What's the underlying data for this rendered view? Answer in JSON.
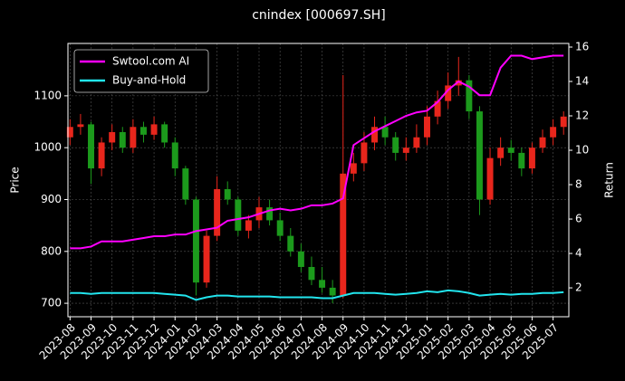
{
  "chart_data": {
    "type": "candlestick",
    "title": "cnindex [000697.SH]",
    "ylabel": "Price",
    "y2label": "Return",
    "x": [
      0,
      0.5,
      1,
      1.5,
      2,
      2.5,
      3,
      3.5,
      4,
      4.5,
      5,
      5.5,
      6,
      6.5,
      7,
      7.5,
      8,
      8.5,
      9,
      9.5,
      10,
      10.5,
      11,
      11.5,
      12,
      12.5,
      13,
      13.5,
      14,
      14.5,
      15,
      15.5,
      16,
      16.5,
      17,
      17.5,
      18,
      18.5,
      19,
      19.5,
      20,
      20.5,
      21,
      21.5,
      22,
      22.5,
      23,
      23.5
    ],
    "open": [
      1020,
      1040,
      1045,
      960,
      1010,
      1030,
      1000,
      1040,
      1025,
      1045,
      1010,
      960,
      900,
      740,
      830,
      920,
      900,
      840,
      860,
      885,
      860,
      830,
      800,
      770,
      745,
      730,
      715,
      950,
      970,
      1010,
      1040,
      1020,
      990,
      1000,
      1020,
      1060,
      1090,
      1120,
      1130,
      1070,
      900,
      980,
      1000,
      990,
      960,
      1000,
      1020,
      1040
    ],
    "close": [
      1040,
      1045,
      960,
      1010,
      1030,
      1000,
      1040,
      1025,
      1045,
      1010,
      960,
      900,
      740,
      830,
      920,
      900,
      840,
      860,
      885,
      860,
      830,
      800,
      770,
      745,
      730,
      715,
      950,
      970,
      1010,
      1040,
      1020,
      990,
      1000,
      1020,
      1060,
      1090,
      1120,
      1130,
      1070,
      900,
      980,
      1000,
      990,
      960,
      1000,
      1020,
      1040,
      1060
    ],
    "high": [
      1055,
      1065,
      1050,
      1020,
      1045,
      1040,
      1055,
      1050,
      1060,
      1050,
      1020,
      965,
      905,
      840,
      945,
      935,
      905,
      870,
      905,
      900,
      875,
      845,
      815,
      790,
      770,
      745,
      1140,
      990,
      1030,
      1060,
      1060,
      1030,
      1020,
      1045,
      1080,
      1110,
      1145,
      1175,
      1140,
      1080,
      1000,
      1020,
      1015,
      1000,
      1010,
      1035,
      1055,
      1070
    ],
    "low": [
      1005,
      1025,
      930,
      945,
      995,
      990,
      990,
      1010,
      1015,
      1000,
      945,
      890,
      715,
      730,
      820,
      890,
      830,
      825,
      845,
      850,
      820,
      790,
      760,
      735,
      720,
      700,
      710,
      935,
      955,
      995,
      1005,
      975,
      975,
      990,
      1005,
      1045,
      1075,
      1100,
      1055,
      870,
      890,
      965,
      975,
      945,
      950,
      990,
      1005,
      1025
    ],
    "up_color": "#e8261c",
    "down_color": "#1c9a1c",
    "series": [
      {
        "name": "Swtool.com AI",
        "color": "#ff00ff",
        "axis": "y2",
        "values": [
          4.3,
          4.3,
          4.4,
          4.7,
          4.7,
          4.7,
          4.8,
          4.9,
          5.0,
          5.0,
          5.1,
          5.1,
          5.3,
          5.4,
          5.5,
          5.9,
          6.0,
          6.1,
          6.3,
          6.5,
          6.6,
          6.5,
          6.6,
          6.8,
          6.8,
          6.9,
          7.2,
          10.3,
          10.7,
          11.1,
          11.4,
          11.7,
          12.0,
          12.2,
          12.3,
          12.8,
          13.5,
          14.0,
          13.7,
          13.2,
          13.2,
          14.8,
          15.5,
          15.5,
          15.3,
          15.4,
          15.5,
          15.5
        ]
      },
      {
        "name": "Buy-and-Hold",
        "color": "#22e5ee",
        "axis": "y2",
        "values": [
          1.7,
          1.7,
          1.65,
          1.7,
          1.7,
          1.7,
          1.7,
          1.7,
          1.7,
          1.65,
          1.6,
          1.55,
          1.3,
          1.45,
          1.55,
          1.55,
          1.5,
          1.5,
          1.5,
          1.5,
          1.45,
          1.45,
          1.45,
          1.45,
          1.4,
          1.4,
          1.55,
          1.7,
          1.7,
          1.7,
          1.65,
          1.6,
          1.65,
          1.7,
          1.8,
          1.75,
          1.85,
          1.8,
          1.7,
          1.55,
          1.6,
          1.65,
          1.6,
          1.65,
          1.65,
          1.7,
          1.7,
          1.75
        ]
      }
    ],
    "xlim": [
      -0.1,
      23.75
    ],
    "xticks": [
      {
        "value": 0,
        "label": "2023-08"
      },
      {
        "value": 1,
        "label": "2023-09"
      },
      {
        "value": 2,
        "label": "2023-10"
      },
      {
        "value": 3,
        "label": "2023-11"
      },
      {
        "value": 4,
        "label": "2023-12"
      },
      {
        "value": 5,
        "label": "2024-01"
      },
      {
        "value": 6,
        "label": "2024-02"
      },
      {
        "value": 7,
        "label": "2024-03"
      },
      {
        "value": 8,
        "label": "2024-04"
      },
      {
        "value": 9,
        "label": "2024-05"
      },
      {
        "value": 10,
        "label": "2024-06"
      },
      {
        "value": 11,
        "label": "2024-07"
      },
      {
        "value": 12,
        "label": "2024-08"
      },
      {
        "value": 13,
        "label": "2024-09"
      },
      {
        "value": 14,
        "label": "2024-10"
      },
      {
        "value": 15,
        "label": "2024-11"
      },
      {
        "value": 16,
        "label": "2024-12"
      },
      {
        "value": 17,
        "label": "2025-01"
      },
      {
        "value": 18,
        "label": "2025-02"
      },
      {
        "value": 19,
        "label": "2025-03"
      },
      {
        "value": 20,
        "label": "2025-04"
      },
      {
        "value": 21,
        "label": "2025-05"
      },
      {
        "value": 22,
        "label": "2025-06"
      },
      {
        "value": 23,
        "label": "2025-07"
      }
    ],
    "ylim": [
      674,
      1201
    ],
    "yticks": [
      700,
      800,
      900,
      1000,
      1100
    ],
    "y2lim": [
      0.32,
      16.21
    ],
    "y2ticks": [
      2,
      4,
      6,
      8,
      10,
      12,
      14,
      16
    ],
    "grid": true,
    "legend": "upper left"
  }
}
